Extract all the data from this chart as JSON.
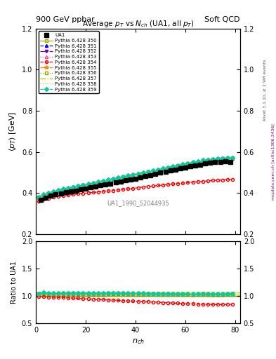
{
  "title_main": "Average p_{T} vs N_{ch} (UA1, all p_{T})",
  "header_left": "900 GeV ppbar",
  "header_right": "Soft QCD",
  "watermark": "UA1_1990_S2044935",
  "xlabel": "n_{ch}",
  "ylabel_main": "<p_{T}> [GeV]",
  "ylabel_ratio": "Ratio to UA1",
  "right_label": "Rivet 3.1.10, ≥ 2.9M events",
  "right_label2": "mcplots.cern.ch [arXiv:1306.3436]",
  "xlim": [
    0,
    82
  ],
  "ylim_main": [
    0.2,
    1.2
  ],
  "ylim_ratio": [
    0.5,
    2.0
  ],
  "yticks_main": [
    0.2,
    0.4,
    0.6,
    0.8,
    1.0,
    1.2
  ],
  "yticks_ratio": [
    0.5,
    1.0,
    1.5,
    2.0
  ],
  "xticks": [
    0,
    20,
    40,
    60,
    80
  ],
  "ua1_x": [
    2,
    4,
    6,
    8,
    10,
    12,
    14,
    16,
    18,
    20,
    22,
    24,
    26,
    28,
    30,
    32,
    34,
    36,
    38,
    40,
    42,
    44,
    46,
    48,
    50,
    52,
    54,
    56,
    58,
    60,
    62,
    64,
    66,
    68,
    70,
    72,
    74,
    76,
    78
  ],
  "ua1_y": [
    0.366,
    0.377,
    0.387,
    0.393,
    0.397,
    0.402,
    0.407,
    0.412,
    0.417,
    0.422,
    0.427,
    0.432,
    0.437,
    0.441,
    0.445,
    0.45,
    0.455,
    0.46,
    0.465,
    0.47,
    0.476,
    0.481,
    0.487,
    0.492,
    0.498,
    0.503,
    0.509,
    0.514,
    0.519,
    0.524,
    0.529,
    0.534,
    0.538,
    0.542,
    0.546,
    0.549,
    0.552,
    0.553,
    0.55
  ],
  "series": [
    {
      "label": "Pythia 6.428 350",
      "color": "#aaaa00",
      "linestyle": "-",
      "marker": "s",
      "markerfilled": false,
      "x": [
        1,
        3,
        5,
        7,
        9,
        11,
        13,
        15,
        17,
        19,
        21,
        23,
        25,
        27,
        29,
        31,
        33,
        35,
        37,
        39,
        41,
        43,
        45,
        47,
        49,
        51,
        53,
        55,
        57,
        59,
        61,
        63,
        65,
        67,
        69,
        71,
        73,
        75,
        77,
        79
      ],
      "y": [
        0.376,
        0.388,
        0.396,
        0.403,
        0.409,
        0.415,
        0.42,
        0.425,
        0.43,
        0.435,
        0.44,
        0.445,
        0.45,
        0.455,
        0.46,
        0.465,
        0.47,
        0.475,
        0.48,
        0.485,
        0.49,
        0.495,
        0.5,
        0.505,
        0.51,
        0.515,
        0.52,
        0.525,
        0.53,
        0.535,
        0.54,
        0.545,
        0.55,
        0.555,
        0.558,
        0.561,
        0.563,
        0.565,
        0.566,
        0.567
      ]
    },
    {
      "label": "Pythia 6.428 351",
      "color": "#0000ff",
      "linestyle": "--",
      "marker": "^",
      "markerfilled": true,
      "x": [
        1,
        3,
        5,
        7,
        9,
        11,
        13,
        15,
        17,
        19,
        21,
        23,
        25,
        27,
        29,
        31,
        33,
        35,
        37,
        39,
        41,
        43,
        45,
        47,
        49,
        51,
        53,
        55,
        57,
        59,
        61,
        63,
        65,
        67,
        69,
        71,
        73,
        75,
        77,
        79
      ],
      "y": [
        0.378,
        0.39,
        0.398,
        0.405,
        0.411,
        0.417,
        0.422,
        0.427,
        0.432,
        0.437,
        0.442,
        0.447,
        0.452,
        0.457,
        0.462,
        0.467,
        0.472,
        0.477,
        0.482,
        0.487,
        0.492,
        0.497,
        0.502,
        0.507,
        0.512,
        0.517,
        0.522,
        0.527,
        0.532,
        0.537,
        0.542,
        0.547,
        0.552,
        0.557,
        0.56,
        0.563,
        0.565,
        0.567,
        0.568,
        0.569
      ]
    },
    {
      "label": "Pythia 6.428 352",
      "color": "#7700aa",
      "linestyle": "-.",
      "marker": "v",
      "markerfilled": true,
      "x": [
        1,
        3,
        5,
        7,
        9,
        11,
        13,
        15,
        17,
        19,
        21,
        23,
        25,
        27,
        29,
        31,
        33,
        35,
        37,
        39,
        41,
        43,
        45,
        47,
        49,
        51,
        53,
        55,
        57,
        59,
        61,
        63,
        65,
        67,
        69,
        71,
        73,
        75,
        77,
        79
      ],
      "y": [
        0.377,
        0.389,
        0.397,
        0.404,
        0.41,
        0.416,
        0.421,
        0.426,
        0.431,
        0.436,
        0.441,
        0.446,
        0.451,
        0.456,
        0.461,
        0.466,
        0.471,
        0.476,
        0.481,
        0.486,
        0.491,
        0.496,
        0.501,
        0.506,
        0.511,
        0.516,
        0.521,
        0.526,
        0.531,
        0.536,
        0.541,
        0.546,
        0.551,
        0.556,
        0.559,
        0.562,
        0.564,
        0.566,
        0.567,
        0.568
      ]
    },
    {
      "label": "Pythia 6.428 353",
      "color": "#ff44aa",
      "linestyle": ":",
      "marker": "^",
      "markerfilled": false,
      "x": [
        1,
        3,
        5,
        7,
        9,
        11,
        13,
        15,
        17,
        19,
        21,
        23,
        25,
        27,
        29,
        31,
        33,
        35,
        37,
        39,
        41,
        43,
        45,
        47,
        49,
        51,
        53,
        55,
        57,
        59,
        61,
        63,
        65,
        67,
        69,
        71,
        73,
        75,
        77,
        79
      ],
      "y": [
        0.378,
        0.39,
        0.398,
        0.405,
        0.411,
        0.417,
        0.422,
        0.427,
        0.432,
        0.437,
        0.442,
        0.447,
        0.452,
        0.457,
        0.462,
        0.467,
        0.472,
        0.477,
        0.482,
        0.487,
        0.492,
        0.497,
        0.502,
        0.507,
        0.512,
        0.517,
        0.522,
        0.527,
        0.532,
        0.537,
        0.542,
        0.547,
        0.552,
        0.557,
        0.56,
        0.563,
        0.565,
        0.567,
        0.568,
        0.569
      ]
    },
    {
      "label": "Pythia 6.428 354",
      "color": "#ff0000",
      "linestyle": "--",
      "marker": "o",
      "markerfilled": false,
      "x": [
        1,
        3,
        5,
        7,
        9,
        11,
        13,
        15,
        17,
        19,
        21,
        23,
        25,
        27,
        29,
        31,
        33,
        35,
        37,
        39,
        41,
        43,
        45,
        47,
        49,
        51,
        53,
        55,
        57,
        59,
        61,
        63,
        65,
        67,
        69,
        71,
        73,
        75,
        77,
        79
      ],
      "y": [
        0.36,
        0.368,
        0.373,
        0.378,
        0.382,
        0.386,
        0.389,
        0.392,
        0.395,
        0.397,
        0.4,
        0.402,
        0.404,
        0.407,
        0.409,
        0.412,
        0.414,
        0.417,
        0.419,
        0.422,
        0.425,
        0.428,
        0.43,
        0.433,
        0.436,
        0.438,
        0.441,
        0.443,
        0.446,
        0.448,
        0.45,
        0.452,
        0.454,
        0.456,
        0.458,
        0.46,
        0.462,
        0.463,
        0.464,
        0.465
      ]
    },
    {
      "label": "Pythia 6.428 355",
      "color": "#ff8800",
      "linestyle": "-.",
      "marker": "*",
      "markerfilled": true,
      "x": [
        1,
        3,
        5,
        7,
        9,
        11,
        13,
        15,
        17,
        19,
        21,
        23,
        25,
        27,
        29,
        31,
        33,
        35,
        37,
        39,
        41,
        43,
        45,
        47,
        49,
        51,
        53,
        55,
        57,
        59,
        61,
        63,
        65,
        67,
        69,
        71,
        73,
        75,
        77,
        79
      ],
      "y": [
        0.378,
        0.39,
        0.398,
        0.405,
        0.411,
        0.417,
        0.422,
        0.427,
        0.432,
        0.437,
        0.442,
        0.447,
        0.452,
        0.457,
        0.462,
        0.467,
        0.472,
        0.477,
        0.482,
        0.487,
        0.492,
        0.497,
        0.502,
        0.507,
        0.512,
        0.517,
        0.522,
        0.527,
        0.532,
        0.537,
        0.542,
        0.547,
        0.552,
        0.557,
        0.56,
        0.563,
        0.565,
        0.567,
        0.568,
        0.569
      ]
    },
    {
      "label": "Pythia 6.428 356",
      "color": "#88aa00",
      "linestyle": ":",
      "marker": "s",
      "markerfilled": false,
      "x": [
        1,
        3,
        5,
        7,
        9,
        11,
        13,
        15,
        17,
        19,
        21,
        23,
        25,
        27,
        29,
        31,
        33,
        35,
        37,
        39,
        41,
        43,
        45,
        47,
        49,
        51,
        53,
        55,
        57,
        59,
        61,
        63,
        65,
        67,
        69,
        71,
        73,
        75,
        77,
        79
      ],
      "y": [
        0.378,
        0.39,
        0.398,
        0.405,
        0.411,
        0.417,
        0.422,
        0.427,
        0.432,
        0.437,
        0.442,
        0.447,
        0.452,
        0.457,
        0.462,
        0.467,
        0.472,
        0.477,
        0.482,
        0.487,
        0.492,
        0.497,
        0.502,
        0.507,
        0.512,
        0.517,
        0.522,
        0.527,
        0.532,
        0.537,
        0.542,
        0.547,
        0.552,
        0.557,
        0.56,
        0.563,
        0.565,
        0.567,
        0.568,
        0.569
      ]
    },
    {
      "label": "Pythia 6.428 357",
      "color": "#aacc00",
      "linestyle": "-.",
      "marker": null,
      "markerfilled": false,
      "x": [
        1,
        3,
        5,
        7,
        9,
        11,
        13,
        15,
        17,
        19,
        21,
        23,
        25,
        27,
        29,
        31,
        33,
        35,
        37,
        39,
        41,
        43,
        45,
        47,
        49,
        51,
        53,
        55,
        57,
        59,
        61,
        63,
        65,
        67,
        69,
        71,
        73,
        75,
        77,
        79
      ],
      "y": [
        0.378,
        0.39,
        0.398,
        0.405,
        0.411,
        0.417,
        0.422,
        0.427,
        0.432,
        0.437,
        0.442,
        0.447,
        0.452,
        0.457,
        0.462,
        0.467,
        0.472,
        0.477,
        0.482,
        0.487,
        0.492,
        0.497,
        0.502,
        0.507,
        0.512,
        0.517,
        0.522,
        0.527,
        0.532,
        0.537,
        0.542,
        0.547,
        0.552,
        0.557,
        0.56,
        0.563,
        0.565,
        0.567,
        0.568,
        0.569
      ]
    },
    {
      "label": "Pythia 6.428 358",
      "color": "#ccdd00",
      "linestyle": ":",
      "marker": null,
      "markerfilled": false,
      "x": [
        1,
        3,
        5,
        7,
        9,
        11,
        13,
        15,
        17,
        19,
        21,
        23,
        25,
        27,
        29,
        31,
        33,
        35,
        37,
        39,
        41,
        43,
        45,
        47,
        49,
        51,
        53,
        55,
        57,
        59,
        61,
        63,
        65,
        67,
        69,
        71,
        73,
        75,
        77,
        79
      ],
      "y": [
        0.378,
        0.39,
        0.398,
        0.405,
        0.411,
        0.417,
        0.422,
        0.427,
        0.432,
        0.437,
        0.442,
        0.447,
        0.452,
        0.457,
        0.462,
        0.467,
        0.472,
        0.477,
        0.482,
        0.487,
        0.492,
        0.497,
        0.502,
        0.507,
        0.512,
        0.517,
        0.522,
        0.527,
        0.532,
        0.537,
        0.542,
        0.547,
        0.552,
        0.557,
        0.56,
        0.563,
        0.565,
        0.567,
        0.568,
        0.569
      ]
    },
    {
      "label": "Pythia 6.428 359",
      "color": "#00ccaa",
      "linestyle": "--",
      "marker": "D",
      "markerfilled": true,
      "x": [
        1,
        3,
        5,
        7,
        9,
        11,
        13,
        15,
        17,
        19,
        21,
        23,
        25,
        27,
        29,
        31,
        33,
        35,
        37,
        39,
        41,
        43,
        45,
        47,
        49,
        51,
        53,
        55,
        57,
        59,
        61,
        63,
        65,
        67,
        69,
        71,
        73,
        75,
        77,
        79
      ],
      "y": [
        0.38,
        0.392,
        0.4,
        0.407,
        0.413,
        0.419,
        0.424,
        0.429,
        0.434,
        0.439,
        0.444,
        0.449,
        0.454,
        0.459,
        0.464,
        0.469,
        0.474,
        0.479,
        0.484,
        0.489,
        0.494,
        0.499,
        0.504,
        0.509,
        0.514,
        0.519,
        0.524,
        0.529,
        0.534,
        0.539,
        0.544,
        0.549,
        0.554,
        0.559,
        0.562,
        0.565,
        0.567,
        0.569,
        0.57,
        0.571
      ]
    }
  ]
}
